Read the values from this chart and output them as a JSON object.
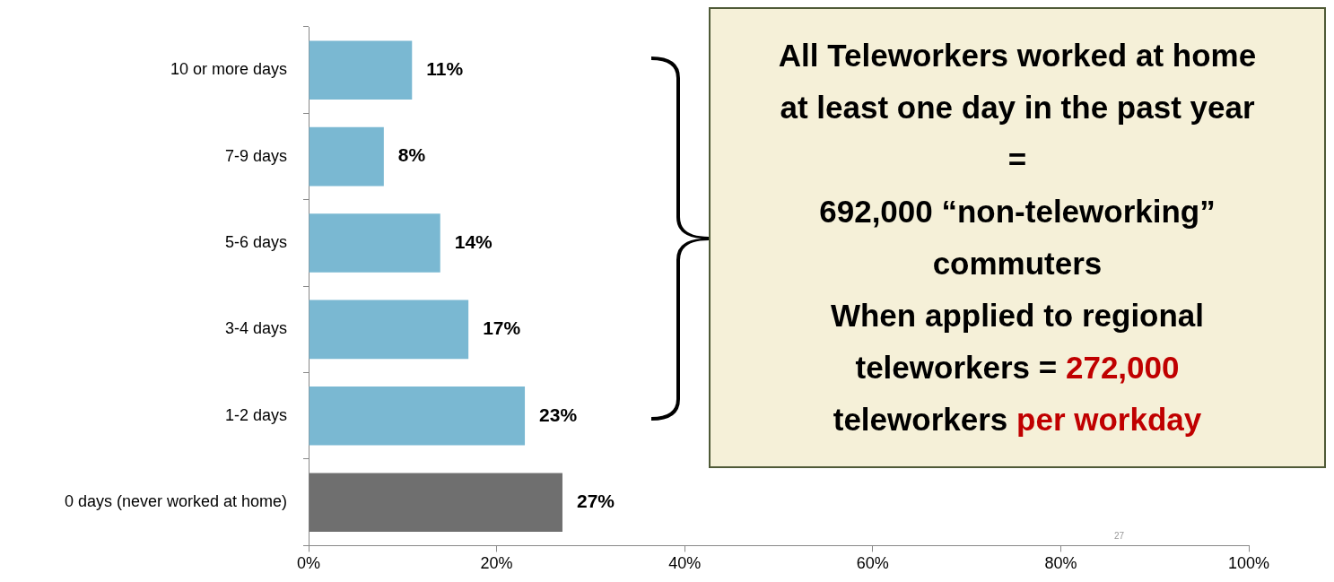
{
  "chart_data": {
    "type": "bar",
    "orientation": "horizontal",
    "categories": [
      "10 or more days",
      "7-9 days",
      "5-6 days",
      "3-4 days",
      "1-2 days",
      "0 days (never worked at home)"
    ],
    "values": [
      11,
      8,
      14,
      17,
      23,
      27
    ],
    "colors": [
      "#7ab8d2",
      "#7ab8d2",
      "#7ab8d2",
      "#7ab8d2",
      "#7ab8d2",
      "#6f6f6f"
    ],
    "value_labels": [
      "11%",
      "8%",
      "14%",
      "17%",
      "23%",
      "27%"
    ],
    "xlim": [
      0,
      100
    ],
    "xticks": [
      {
        "value": 0,
        "label": "0%"
      },
      {
        "value": 20,
        "label": "20%"
      },
      {
        "value": 40,
        "label": "40%"
      },
      {
        "value": 60,
        "label": "60%"
      },
      {
        "value": 80,
        "label": "80%"
      },
      {
        "value": 100,
        "label": "100%"
      }
    ],
    "grid": false,
    "legend": false,
    "annotations": [
      "All Teleworkers worked at home at least one day in the past year",
      "=",
      "692,000 “non-teleworking” commuters",
      "When applied to regional teleworkers = ",
      "272,000",
      "teleworkers ",
      "per workday",
      "27"
    ]
  }
}
